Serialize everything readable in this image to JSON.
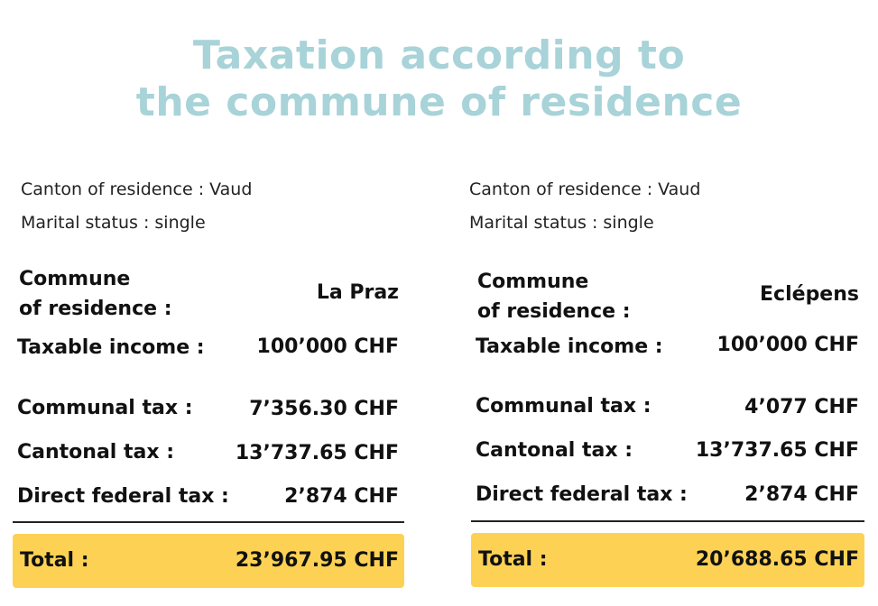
{
  "title": {
    "line1": "Taxation according to",
    "line2": "the commune of residence"
  },
  "colors": {
    "title": "#a8d3d8",
    "total_highlight": "#fdd254",
    "text": "#111111"
  },
  "panels": [
    {
      "canton": "Canton of residence : Vaud",
      "marital_status": "Marital status : single",
      "commune_label_line1": "Commune",
      "commune_label_line2": "of residence :",
      "commune": "La Praz",
      "taxable_income_label": "Taxable income :",
      "taxable_income": "100’000 CHF",
      "communal_tax_label": "Communal tax :",
      "communal_tax": "7’356.30 CHF",
      "cantonal_tax_label": "Cantonal tax :",
      "cantonal_tax": "13’737.65 CHF",
      "federal_tax_label": "Direct federal tax :",
      "federal_tax": "2’874 CHF",
      "total_label": "Total :",
      "total": "23’967.95 CHF"
    },
    {
      "canton": "Canton of residence : Vaud",
      "marital_status": "Marital status : single",
      "commune_label_line1": "Commune",
      "commune_label_line2": "of residence :",
      "commune": "Eclépens",
      "taxable_income_label": "Taxable income :",
      "taxable_income": "100’000 CHF",
      "communal_tax_label": "Communal tax :",
      "communal_tax": "4’077 CHF",
      "cantonal_tax_label": "Cantonal tax :",
      "cantonal_tax": "13’737.65 CHF",
      "federal_tax_label": "Direct federal tax :",
      "federal_tax": "2’874 CHF",
      "total_label": "Total :",
      "total": "20’688.65 CHF"
    }
  ]
}
